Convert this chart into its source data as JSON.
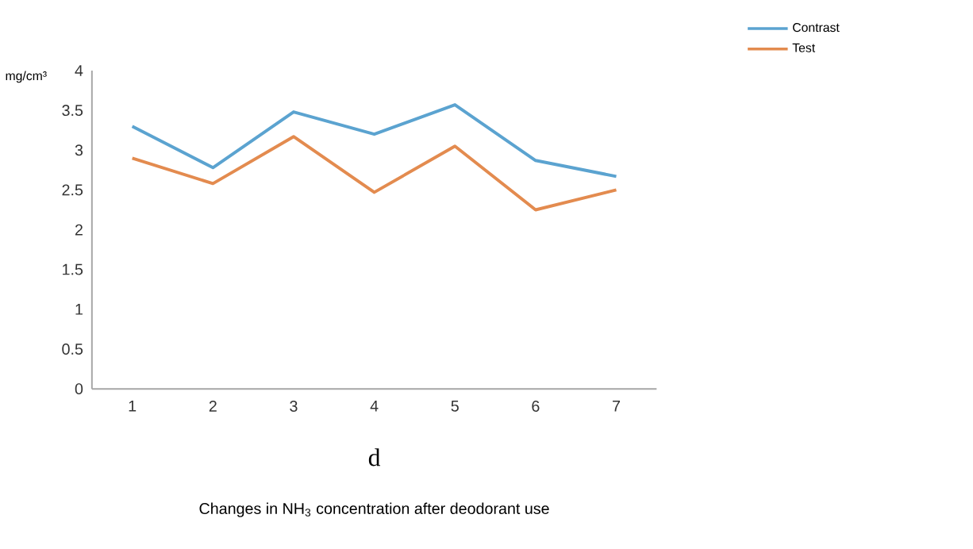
{
  "chart_data": {
    "type": "line",
    "categories": [
      "1",
      "2",
      "3",
      "4",
      "5",
      "6",
      "7"
    ],
    "series": [
      {
        "name": "Contrast",
        "color": "#5ba3d0",
        "values": [
          3.3,
          2.78,
          3.48,
          3.2,
          3.57,
          2.87,
          2.67
        ]
      },
      {
        "name": "Test",
        "color": "#e38b4f",
        "values": [
          2.9,
          2.58,
          3.17,
          2.47,
          3.05,
          2.25,
          2.5
        ]
      }
    ],
    "ylim": [
      0,
      4
    ],
    "yticks": [
      0,
      0.5,
      1,
      1.5,
      2,
      2.5,
      3,
      3.5,
      4
    ],
    "ylabel": "mg/cm³",
    "xlabel": "d",
    "legend": "top right",
    "grid": false,
    "marker": "none",
    "line_style": "solid",
    "annotations": [
      "Changes in NH$_{3}$ concentration after deodorant use"
    ]
  }
}
